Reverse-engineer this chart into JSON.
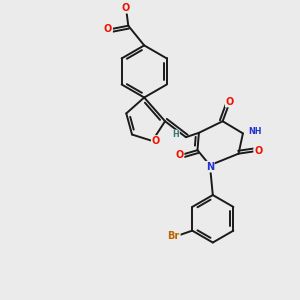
{
  "background_color": "#ebebeb",
  "bond_color": "#1a1a1a",
  "bond_width": 1.4,
  "atom_colors": {
    "O": "#ee1100",
    "N": "#2233cc",
    "Br": "#bb6600",
    "H": "#337777",
    "C": "#1a1a1a"
  },
  "font_size_atom": 7.0,
  "font_size_small": 5.8,
  "font_size_br": 7.0
}
